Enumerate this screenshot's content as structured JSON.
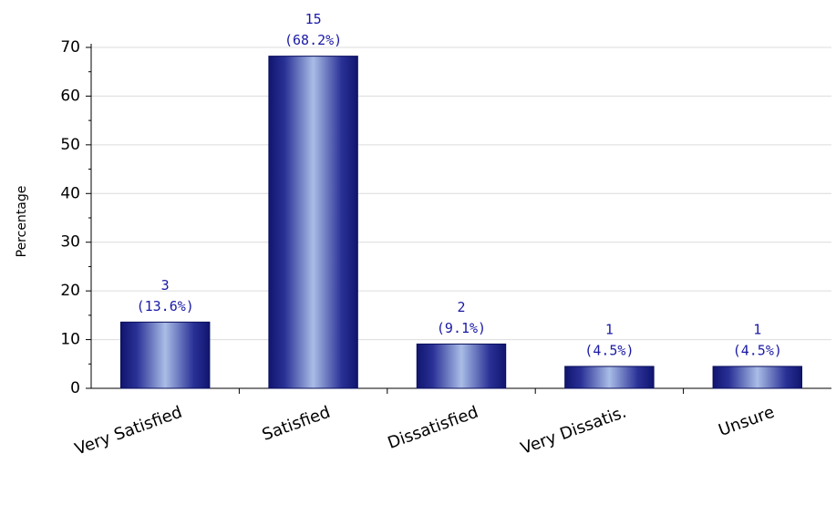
{
  "chart_data": {
    "type": "bar",
    "title": "",
    "xlabel": "",
    "ylabel": "Percentage",
    "ylim": [
      0,
      70
    ],
    "yticks": [
      "0",
      "10",
      "20",
      "30",
      "40",
      "50",
      "60",
      "70"
    ],
    "grid": true,
    "legend": "none",
    "categories": [
      "Very Satisfied",
      "Satisfied",
      "Dissatisfied",
      "Very Dissatis.",
      "Unsure"
    ],
    "values": [
      13.6,
      68.2,
      9.1,
      4.5,
      4.5
    ],
    "counts": [
      "3",
      "15",
      "2",
      "1",
      "1"
    ],
    "percent_labels": [
      "(13.6%)",
      "(68.2%)",
      "(9.1%)",
      "(4.5%)",
      "(4.5%)"
    ],
    "bar_color": "#1a1f8a",
    "bar_highlight_color": "#a9bde6",
    "label_color": "#1a1aa6"
  }
}
